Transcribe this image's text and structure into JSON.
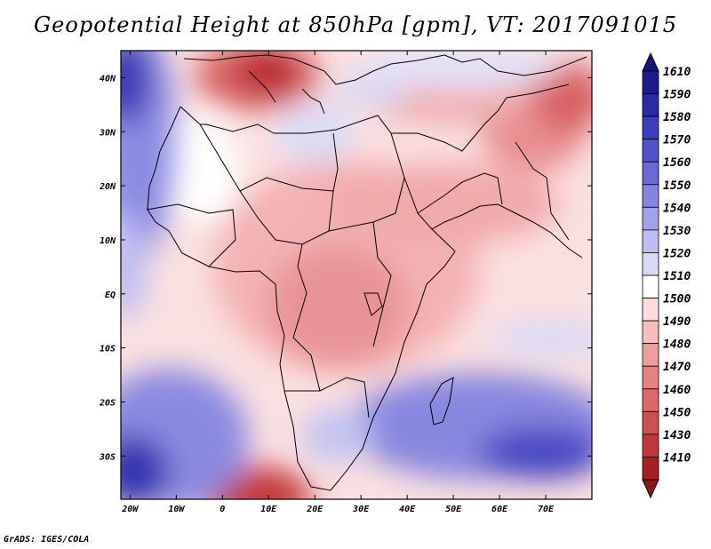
{
  "title": "Geopotential Height at 850hPa [gpm], VT: 2017091015",
  "footer": "GrADS: IGES/COLA",
  "map": {
    "lon_range": [
      -22,
      80
    ],
    "lat_range": [
      -38,
      45
    ],
    "lon_ticks": [
      {
        "value": -20,
        "label": "20W"
      },
      {
        "value": -10,
        "label": "10W"
      },
      {
        "value": 0,
        "label": "0"
      },
      {
        "value": 10,
        "label": "10E"
      },
      {
        "value": 20,
        "label": "20E"
      },
      {
        "value": 30,
        "label": "30E"
      },
      {
        "value": 40,
        "label": "40E"
      },
      {
        "value": 50,
        "label": "50E"
      },
      {
        "value": 60,
        "label": "60E"
      },
      {
        "value": 70,
        "label": "70E"
      }
    ],
    "lat_ticks": [
      {
        "value": 40,
        "label": "40N"
      },
      {
        "value": 30,
        "label": "30N"
      },
      {
        "value": 20,
        "label": "20N"
      },
      {
        "value": 10,
        "label": "10N"
      },
      {
        "value": 0,
        "label": "EQ"
      },
      {
        "value": -10,
        "label": "10S"
      },
      {
        "value": -20,
        "label": "20S"
      },
      {
        "value": -30,
        "label": "30S"
      }
    ]
  },
  "legend": {
    "levels": [
      {
        "label": "1610",
        "color": "#1c1c8f"
      },
      {
        "label": "1590",
        "color": "#2a2aa8"
      },
      {
        "label": "1580",
        "color": "#3c3cbd"
      },
      {
        "label": "1570",
        "color": "#5252cc"
      },
      {
        "label": "1560",
        "color": "#6a6ad6"
      },
      {
        "label": "1550",
        "color": "#8585e0"
      },
      {
        "label": "1540",
        "color": "#a2a2ea"
      },
      {
        "label": "1530",
        "color": "#bdbdf2"
      },
      {
        "label": "1520",
        "color": "#dadaf8"
      },
      {
        "label": "1510",
        "color": "#ffffff"
      },
      {
        "label": "1500",
        "color": "#fcdcdc"
      },
      {
        "label": "1490",
        "color": "#f7bdbd"
      },
      {
        "label": "1480",
        "color": "#ef9e9e"
      },
      {
        "label": "1470",
        "color": "#e68282"
      },
      {
        "label": "1460",
        "color": "#dc6868"
      },
      {
        "label": "1450",
        "color": "#cf4f4f"
      },
      {
        "label": "1430",
        "color": "#c03838"
      },
      {
        "label": "1410",
        "color": "#a81f1f"
      }
    ],
    "top_color": "#14147a",
    "bottom_color": "#8f1515"
  }
}
